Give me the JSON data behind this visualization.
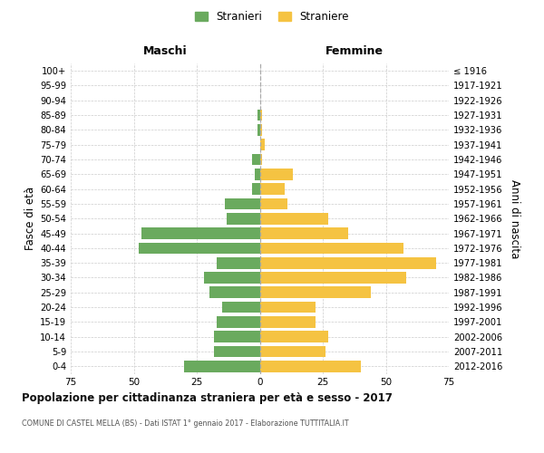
{
  "age_groups": [
    "0-4",
    "5-9",
    "10-14",
    "15-19",
    "20-24",
    "25-29",
    "30-34",
    "35-39",
    "40-44",
    "45-49",
    "50-54",
    "55-59",
    "60-64",
    "65-69",
    "70-74",
    "75-79",
    "80-84",
    "85-89",
    "90-94",
    "95-99",
    "100+"
  ],
  "birth_years": [
    "2012-2016",
    "2007-2011",
    "2002-2006",
    "1997-2001",
    "1992-1996",
    "1987-1991",
    "1982-1986",
    "1977-1981",
    "1972-1976",
    "1967-1971",
    "1962-1966",
    "1957-1961",
    "1952-1956",
    "1947-1951",
    "1942-1946",
    "1937-1941",
    "1932-1936",
    "1927-1931",
    "1922-1926",
    "1917-1921",
    "≤ 1916"
  ],
  "maschi": [
    30,
    18,
    18,
    17,
    15,
    20,
    22,
    17,
    48,
    47,
    13,
    14,
    3,
    2,
    3,
    0,
    1,
    1,
    0,
    0,
    0
  ],
  "femmine": [
    40,
    26,
    27,
    22,
    22,
    44,
    58,
    70,
    57,
    35,
    27,
    11,
    10,
    13,
    1,
    2,
    1,
    1,
    0,
    0,
    0
  ],
  "maschi_color": "#6aaa5e",
  "femmine_color": "#f5c342",
  "background_color": "#ffffff",
  "grid_color": "#cccccc",
  "title": "Popolazione per cittadinanza straniera per età e sesso - 2017",
  "subtitle": "COMUNE DI CASTEL MELLA (BS) - Dati ISTAT 1° gennaio 2017 - Elaborazione TUTTITALIA.IT",
  "ylabel_left": "Fasce di età",
  "ylabel_right": "Anni di nascita",
  "xlabel_maschi": "Maschi",
  "xlabel_femmine": "Femmine",
  "legend_maschi": "Stranieri",
  "legend_femmine": "Straniere",
  "xlim": 75
}
